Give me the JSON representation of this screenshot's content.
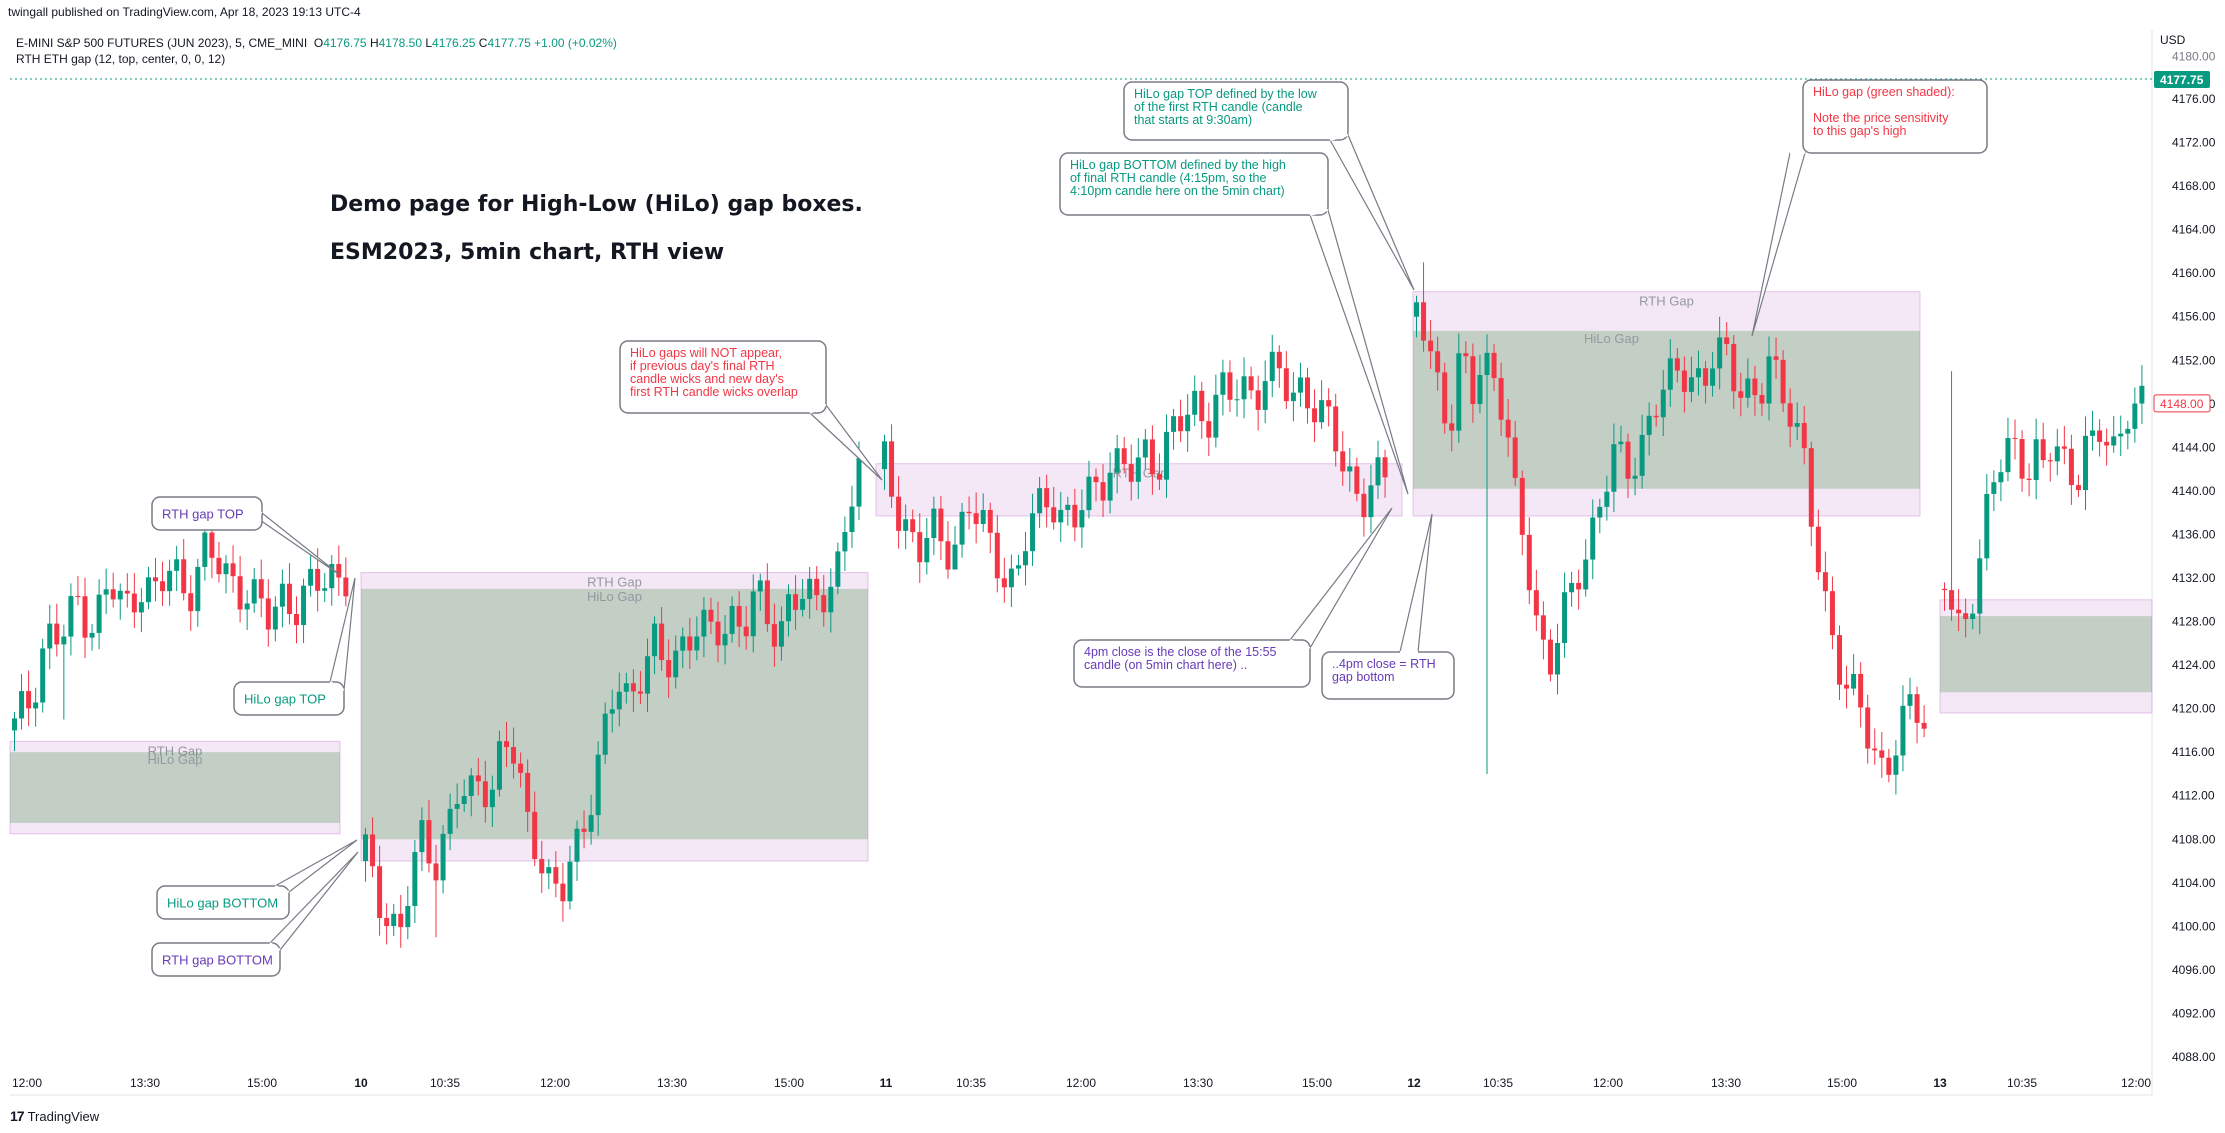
{
  "header": {
    "published": "twingall published on TradingView.com, Apr 18, 2023 19:13 UTC-4",
    "symbol": "E-MINI S&P 500 FUTURES (JUN 2023), 5, CME_MINI",
    "open_label": "O",
    "open": "4176.75",
    "high_label": "H",
    "high": "4178.50",
    "low_label": "L",
    "low": "4176.25",
    "close_label": "C",
    "close": "4177.75",
    "change": "+1.00 (+0.02%)",
    "indicator": "RTH ETH gap (12, top, center, 0, 0, 12)",
    "currency": "USD",
    "brand": "TradingView"
  },
  "colors": {
    "up": "#089981",
    "down": "#f23645",
    "purple": "#673ab7",
    "teal": "#089981",
    "red": "#f23645",
    "rth_fill": "rgba(206,147,216,0.22)",
    "hilo_fill": "rgba(67,145,71,0.28)"
  },
  "chart_data": {
    "type": "candlestick",
    "title": "Demo page for High-Low (HiLo) gap boxes.",
    "subtitle": "ESM2023, 5min chart, RTH view",
    "y_axis": {
      "ticks": [
        "4176.00",
        "4172.00",
        "4168.00",
        "4164.00",
        "4160.00",
        "4156.00",
        "4152.00",
        "4148.00",
        "4144.00",
        "4140.00",
        "4136.00",
        "4132.00",
        "4128.00",
        "4124.00",
        "4120.00",
        "4116.00",
        "4112.00",
        "4108.00",
        "4104.00",
        "4100.00",
        "4096.00",
        "4092.00",
        "4088.00"
      ],
      "partial_top": "4180.00",
      "range": [
        4086.5,
        4182
      ]
    },
    "last_price": "4177.75",
    "marker_price": "4148.00",
    "x_axis": {
      "ticks": [
        {
          "label": "12:00",
          "bold": false
        },
        {
          "label": "13:30",
          "bold": false
        },
        {
          "label": "15:00",
          "bold": false
        },
        {
          "label": "10",
          "bold": true
        },
        {
          "label": "10:35",
          "bold": false
        },
        {
          "label": "12:00",
          "bold": false
        },
        {
          "label": "13:30",
          "bold": false
        },
        {
          "label": "15:00",
          "bold": false
        },
        {
          "label": "11",
          "bold": true
        },
        {
          "label": "10:35",
          "bold": false
        },
        {
          "label": "12:00",
          "bold": false
        },
        {
          "label": "13:30",
          "bold": false
        },
        {
          "label": "15:00",
          "bold": false
        },
        {
          "label": "12",
          "bold": true
        },
        {
          "label": "10:35",
          "bold": false
        },
        {
          "label": "12:00",
          "bold": false
        },
        {
          "label": "13:30",
          "bold": false
        },
        {
          "label": "15:00",
          "bold": false
        },
        {
          "label": "13",
          "bold": true
        },
        {
          "label": "10:35",
          "bold": false
        },
        {
          "label": "12:00",
          "bold": false
        }
      ]
    },
    "segments": [
      {
        "name": "day1",
        "points": [
          4118,
          4121,
          4127,
          4126,
          4130,
          4128,
          4131,
          4129,
          4132,
          4130,
          4133,
          4131,
          4134,
          4133,
          4132,
          4130,
          4128,
          4131,
          4129,
          4131,
          4133,
          4132
        ],
        "low_excursion": 4119
      },
      {
        "name": "day2",
        "points": [
          4106,
          4103,
          4101,
          4100,
          4104,
          4108,
          4106,
          4109,
          4112,
          4111,
          4114,
          4113,
          4117,
          4115,
          4110,
          4108,
          4104,
          4102,
          4106,
          4110,
          4114,
          4118,
          4122,
          4121,
          4124,
          4126,
          4123,
          4125,
          4127,
          4128,
          4126,
          4127,
          4129,
          4128,
          4130,
          4128,
          4127,
          4131,
          4130,
          4129,
          4131,
          4133,
          4138,
          4141
        ],
        "low_excursion": 4099
      },
      {
        "name": "day3",
        "points": [
          4142,
          4138,
          4137,
          4135,
          4136,
          4134,
          4136,
          4139,
          4137,
          4134,
          4133,
          4132,
          4136,
          4138,
          4140,
          4138,
          4137,
          4139,
          4141,
          4143,
          4142,
          4141,
          4144,
          4143,
          4145,
          4146,
          4148,
          4147,
          4149,
          4148,
          4150,
          4149,
          4151,
          4150,
          4149,
          4150,
          4148,
          4146,
          4144,
          4142,
          4139,
          4140,
          4141
        ],
        "low_excursion": 4133
      },
      {
        "name": "day4",
        "points": [
          4156,
          4154,
          4150,
          4146,
          4152,
          4148,
          4153,
          4151,
          4147,
          4138,
          4134,
          4128,
          4124,
          4127,
          4130,
          4134,
          4137,
          4140,
          4143,
          4142,
          4144,
          4146,
          4148,
          4150,
          4152,
          4151,
          4149,
          4152,
          4153,
          4151,
          4149,
          4147,
          4152,
          4150,
          4148,
          4143,
          4135,
          4130,
          4126,
          4122,
          4120,
          4117,
          4115,
          4116,
          4118,
          4120,
          4119
        ],
        "high_excursion": 4161,
        "low_excursion": 4114
      },
      {
        "name": "day5",
        "points": [
          4131,
          4129,
          4127,
          4130,
          4133,
          4137,
          4140,
          4143,
          4145,
          4144,
          4142,
          4143,
          4141,
          4144,
          4145,
          4142,
          4141,
          4144,
          4143,
          4145,
          4146,
          4144,
          4147,
          4148,
          4147
        ],
        "high_excursion": 4151
      }
    ],
    "rth_gaps": [
      {
        "label": "RTH Gap",
        "top": 4117,
        "bottom": 4108.5
      },
      {
        "label": "RTH Gap",
        "top": 4132.5,
        "bottom": 4106
      },
      {
        "label": "RTH Gap",
        "top": 4142.5,
        "bottom": 4137.7
      },
      {
        "label": "RTH Gap",
        "top": 4158.3,
        "bottom": 4137.7
      },
      {
        "label": "",
        "top": 4130,
        "bottom": 4119.6
      }
    ],
    "hilo_gaps": [
      {
        "label": "HiLo Gap",
        "top": 4116,
        "bottom": 4109.5
      },
      {
        "label": "HiLo Gap",
        "top": 4131,
        "bottom": 4108
      },
      {
        "label": "HiLo Gap",
        "top": 4154.7,
        "bottom": 4140.2
      },
      {
        "label": "",
        "top": 4128.5,
        "bottom": 4121.5
      }
    ],
    "callouts": [
      {
        "text": "RTH gap TOP",
        "color": "purple"
      },
      {
        "text": "HiLo gap TOP",
        "color": "teal"
      },
      {
        "text": "HiLo gap BOTTOM",
        "color": "teal"
      },
      {
        "text": "RTH gap BOTTOM",
        "color": "purple"
      },
      {
        "lines": [
          "HiLo gaps will NOT appear,",
          "if previous day's final RTH",
          "candle wicks and new day's",
          "first RTH candle wicks overlap"
        ],
        "color": "red"
      },
      {
        "lines": [
          "HiLo gap BOTTOM defined by the high",
          "of final RTH candle (4:15pm, so the",
          "4:10pm candle here on the 5min chart)"
        ],
        "color": "teal"
      },
      {
        "lines": [
          "HiLo gap TOP defined by the low",
          "of the first RTH candle (candle",
          "that starts at 9:30am)"
        ],
        "color": "teal"
      },
      {
        "lines": [
          "HiLo gap (green shaded):",
          "",
          "Note the price sensitivity",
          "to this gap's high"
        ],
        "color": "red"
      },
      {
        "lines": [
          "4pm close is the close of the 15:55",
          "candle (on 5min chart here) .."
        ],
        "color": "purple"
      },
      {
        "lines": [
          "..4pm close = RTH",
          "gap bottom"
        ],
        "color": "purple"
      }
    ]
  }
}
